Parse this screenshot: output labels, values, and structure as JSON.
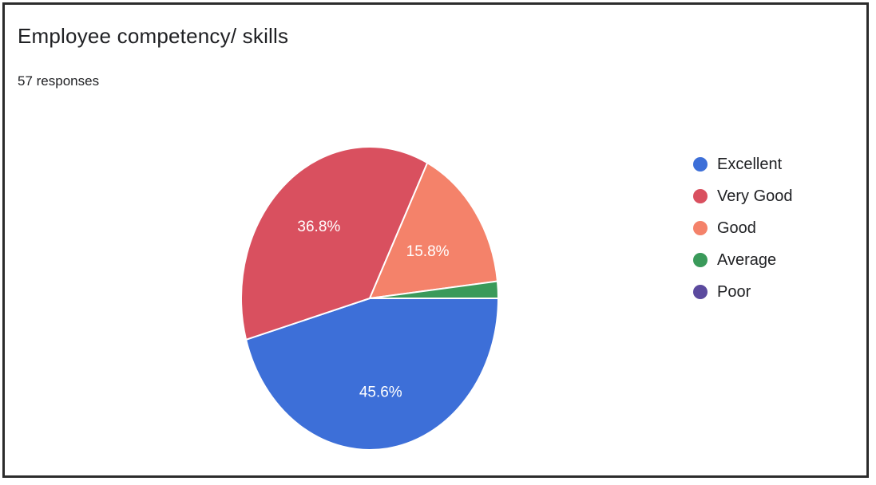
{
  "card": {
    "title": "Employee competency/ skills",
    "responses": "57 responses"
  },
  "chart_data": {
    "type": "pie",
    "title": "Employee competency/ skills",
    "subtitle": "57 responses",
    "legend_position": "right",
    "categories": [
      "Excellent",
      "Very Good",
      "Good",
      "Average",
      "Poor"
    ],
    "values": [
      45.6,
      36.8,
      15.8,
      1.8,
      0
    ],
    "data_labels": [
      "45.6%",
      "36.8%",
      "15.8%",
      "",
      ""
    ],
    "colors": [
      "#3d6fd8",
      "#d9505f",
      "#f4826a",
      "#3a9a5a",
      "#5b4a9e"
    ]
  }
}
